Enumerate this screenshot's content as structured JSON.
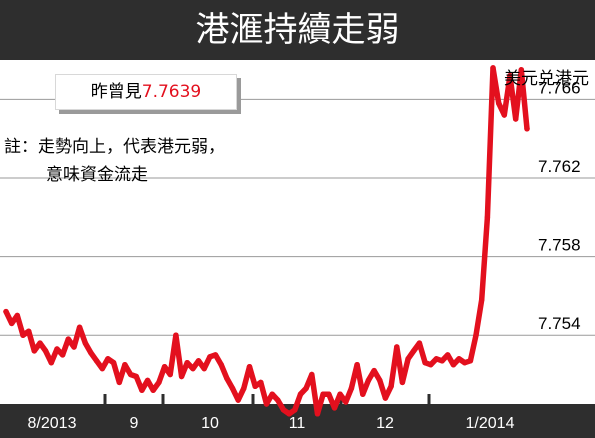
{
  "title": "港滙持續走弱",
  "info_box": {
    "label": "昨曾見",
    "value": "7.7639"
  },
  "note": {
    "line1": "註：走勢向上，代表港元弱，",
    "line2": "意味資金流走"
  },
  "colors": {
    "line": "#e3101e",
    "title_bg": "#2e2e2e",
    "axis_bar": "#2e2e2e",
    "grid": "#9a9a9a"
  },
  "chart_data": {
    "type": "line",
    "series_label": "美元兑港元",
    "x_tick_labels": [
      "8/2013",
      "9",
      "10",
      "11",
      "12",
      "1/2014"
    ],
    "y_tick_labels": [
      "7.766",
      "7.762",
      "7.758",
      "7.754"
    ],
    "ylim": [
      7.7505,
      7.768
    ],
    "grid": true,
    "series": [
      {
        "values": [
          7.7552,
          7.7546,
          7.755,
          7.754,
          7.7542,
          7.7532,
          7.7536,
          7.7532,
          7.7526,
          7.7533,
          7.753,
          7.7538,
          7.7534,
          7.7544,
          7.7536,
          7.7531,
          7.7527,
          7.7523,
          7.7528,
          7.7526,
          7.7516,
          7.7525,
          7.752,
          7.7519,
          7.7512,
          7.7517,
          7.7512,
          7.7516,
          7.7524,
          7.752,
          7.754,
          7.7519,
          7.7526,
          7.7523,
          7.7527,
          7.7523,
          7.7529,
          7.753,
          7.7525,
          7.7518,
          7.7513,
          7.7507,
          7.7513,
          7.7524,
          7.7514,
          7.7516,
          7.7505,
          7.751,
          7.7507,
          7.7502,
          7.75,
          7.7502,
          7.751,
          7.7513,
          7.752,
          7.75,
          7.751,
          7.751,
          7.7503,
          7.751,
          7.7506,
          7.7513,
          7.7525,
          7.751,
          7.7517,
          7.7522,
          7.7517,
          7.7508,
          7.7514,
          7.7534,
          7.7516,
          7.7528,
          7.7532,
          7.7536,
          7.7526,
          7.7525,
          7.7528,
          7.7527,
          7.753,
          7.7525,
          7.7528,
          7.7526,
          7.7527,
          7.754,
          7.7558,
          7.76,
          7.7676,
          7.7658,
          7.7652,
          7.7672,
          7.765,
          7.7675,
          7.7645
        ]
      }
    ]
  }
}
